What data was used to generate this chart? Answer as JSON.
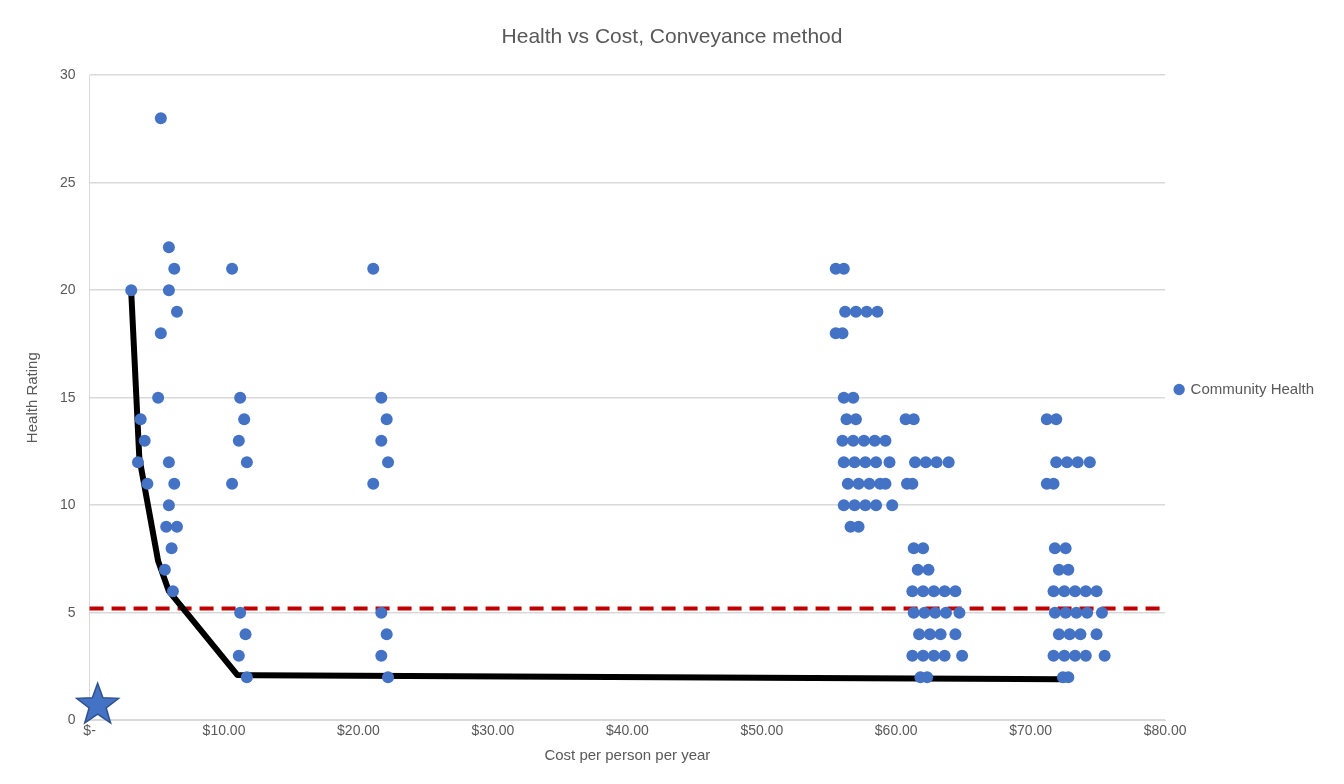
{
  "chart_data": {
    "type": "scatter",
    "title": "Health vs Cost, Conveyance method",
    "xlabel": "Cost per person per year",
    "ylabel": "Health Rating",
    "xlim": [
      0,
      80
    ],
    "xticks": [
      {
        "value": 0,
        "label": "$-"
      },
      {
        "value": 10,
        "label": "$10.00"
      },
      {
        "value": 20,
        "label": "$20.00"
      },
      {
        "value": 30,
        "label": "$30.00"
      },
      {
        "value": 40,
        "label": "$40.00"
      },
      {
        "value": 50,
        "label": "$50.00"
      },
      {
        "value": 60,
        "label": "$60.00"
      },
      {
        "value": 70,
        "label": "$70.00"
      },
      {
        "value": 80,
        "label": "$80.00"
      }
    ],
    "ylim": [
      0,
      30
    ],
    "yticks": [
      0,
      5,
      10,
      15,
      20,
      25,
      30
    ],
    "grid": "y",
    "legend": "right",
    "ref_lines": [
      {
        "axis": "y",
        "value": 5.2,
        "color": "#c00000",
        "line_style": "dashed"
      }
    ],
    "series": [
      {
        "name": "Community Health",
        "color": "#4472c4",
        "marker": "circle",
        "x": [
          5.3,
          5.9,
          6.3,
          10.6,
          3.1,
          5.9,
          6.5,
          5.3,
          5.1,
          11.2,
          3.8,
          11.5,
          4.1,
          11.1,
          3.6,
          5.9,
          11.7,
          4.3,
          6.3,
          10.6,
          5.9,
          5.7,
          6.5,
          6.1,
          5.6,
          6.2,
          11.2,
          11.6,
          11.1,
          11.7,
          21.1,
          21.7,
          22.1,
          21.7,
          22.2,
          21.1,
          21.7,
          22.1,
          21.7,
          22.2,
          55.5,
          56.1,
          56.2,
          57,
          57.8,
          58.6,
          55.5,
          56,
          56.1,
          56.8,
          56.3,
          57,
          60.7,
          61.3,
          56,
          56.8,
          57.6,
          58.4,
          59.2,
          56.1,
          56.9,
          57.7,
          58.5,
          59.5,
          61.4,
          62.2,
          63,
          63.9,
          56.4,
          57.2,
          58,
          58.8,
          59.2,
          60.8,
          61.2,
          56.1,
          56.9,
          57.7,
          58.5,
          59.7,
          56.6,
          57.2,
          61.3,
          62,
          61.6,
          62.4,
          61.2,
          62,
          62.8,
          63.6,
          64.4,
          61.3,
          62.1,
          62.9,
          63.7,
          64.7,
          61.7,
          62.5,
          63.3,
          64.4,
          61.2,
          62,
          62.8,
          63.6,
          64.9,
          61.8,
          62.3,
          71.2,
          71.9,
          71.9,
          72.7,
          73.5,
          74.4,
          71.2,
          71.7,
          71.8,
          72.6,
          72.1,
          72.8,
          71.7,
          72.5,
          73.3,
          74.1,
          74.9,
          71.8,
          72.6,
          73.4,
          74.2,
          75.3,
          72.1,
          72.9,
          73.7,
          74.9,
          71.7,
          72.5,
          73.3,
          74.1,
          75.5,
          72.4,
          72.8
        ],
        "values": [
          28,
          22,
          21,
          21,
          20,
          20,
          19,
          18,
          15,
          15,
          14,
          14,
          13,
          13,
          12,
          12,
          12,
          11,
          11,
          11,
          10,
          9,
          9,
          8,
          7,
          6,
          5,
          4,
          3,
          2,
          21,
          15,
          14,
          13,
          12,
          11,
          5,
          4,
          3,
          2,
          21,
          21,
          19,
          19,
          19,
          19,
          18,
          18,
          15,
          15,
          14,
          14,
          14,
          14,
          13,
          13,
          13,
          13,
          13,
          12,
          12,
          12,
          12,
          12,
          12,
          12,
          12,
          12,
          11,
          11,
          11,
          11,
          11,
          11,
          11,
          10,
          10,
          10,
          10,
          10,
          9,
          9,
          8,
          8,
          7,
          7,
          6,
          6,
          6,
          6,
          6,
          5,
          5,
          5,
          5,
          5,
          4,
          4,
          4,
          4,
          3,
          3,
          3,
          3,
          3,
          2,
          2,
          14,
          14,
          12,
          12,
          12,
          12,
          11,
          11,
          8,
          8,
          7,
          7,
          6,
          6,
          6,
          6,
          6,
          5,
          5,
          5,
          5,
          5,
          4,
          4,
          4,
          4,
          3,
          3,
          3,
          3,
          3,
          2,
          2
        ]
      },
      {
        "type": "line",
        "color": "#000000",
        "marker": "none",
        "x": [
          3.1,
          3.7,
          5.1,
          5.9,
          11.0,
          72.3
        ],
        "values": [
          19.9,
          12.2,
          7.4,
          6.0,
          2.1,
          1.9
        ]
      },
      {
        "type": "scatter",
        "color": "#4472c4",
        "marker": "star",
        "x": [
          0.6
        ],
        "values": [
          0.7
        ]
      }
    ]
  }
}
